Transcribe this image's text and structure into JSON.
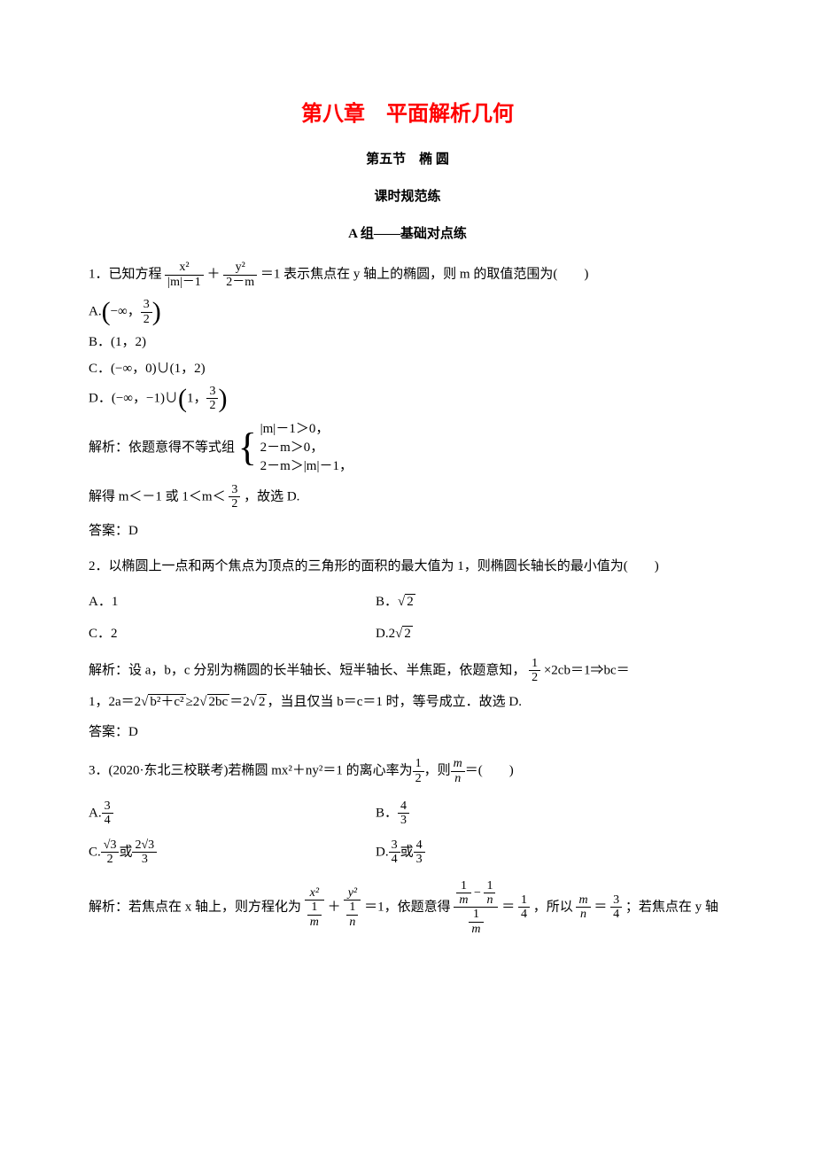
{
  "chapter": "第八章　平面解析几何",
  "section": "第五节　椭 圆",
  "subsection": "课时规范练",
  "group": "A 组——基础对点练",
  "q1": {
    "stem_pre": "1．已知方程",
    "stem_post": "＝1 表示焦点在 y 轴上的椭圆，则 m 的取值范围为(　　)",
    "frac1_num": "x²",
    "frac1_den": "|m|－1",
    "frac2_num": "y²",
    "frac2_den": "2－m",
    "plus": "＋",
    "A": "A.",
    "A_pre": "−∞，",
    "A_frac_num": "3",
    "A_frac_den": "2",
    "B": "B．(1，2)",
    "C": "C．(−∞，0)∪(1，2)",
    "D_pre": "D．(−∞，−1)∪",
    "D_in_pre": "1，",
    "D_frac_num": "3",
    "D_frac_den": "2",
    "sol_pre": "解析：依题意得不等式组",
    "sol_line1": "|m|－1＞0，",
    "sol_line2": "2－m＞0，",
    "sol_line3": "2－m＞|m|－1，",
    "sol2_pre": "解得 m＜－1 或 1＜m＜",
    "sol2_frac_num": "3",
    "sol2_frac_den": "2",
    "sol2_post": "，故选 D.",
    "ans": "答案：D"
  },
  "q2": {
    "stem": "2．以椭圆上一点和两个焦点为顶点的三角形的面积的最大值为 1，则椭圆长轴长的最小值为(　　)",
    "A": "A．1",
    "B_pre": "B．",
    "B_rad": "2",
    "C": "C．2",
    "D_pre": "D.2",
    "D_rad": "2",
    "sol_pre": "解析：设 a，b，c 分别为椭圆的长半轴长、短半轴长、半焦距，依题意知，",
    "sol_frac_num": "1",
    "sol_frac_den": "2",
    "sol_mid": "×2cb＝1⇒bc＝",
    "sol2_pre": "1，2a＝2",
    "sol2_rad1": "b²＋c²",
    "sol2_ge": "≥2",
    "sol2_rad2": "2bc",
    "sol2_eq": "＝2",
    "sol2_rad3": "2",
    "sol2_post": "，当且仅当 b＝c＝1 时，等号成立．故选 D.",
    "ans": "答案：D"
  },
  "q3": {
    "stem_pre": "3．(2020·东北三校联考)若椭圆 mx²＋ny²＝1 的离心率为",
    "stem_frac1_num": "1",
    "stem_frac1_den": "2",
    "stem_mid": "，则",
    "stem_frac2_num": "m",
    "stem_frac2_den": "n",
    "stem_post": "＝(　　)",
    "A_pre": "A.",
    "A_num": "3",
    "A_den": "4",
    "B_pre": "B．",
    "B_num": "4",
    "B_den": "3",
    "C_pre": "C.",
    "C_num1": "√3",
    "C_den1": "2",
    "C_or": "或",
    "C_num2": "2√3",
    "C_den2": "3",
    "D_pre": "D.",
    "D_num1": "3",
    "D_den1": "4",
    "D_or": "或",
    "D_num2": "4",
    "D_den2": "3",
    "sol_pre": "解析：若焦点在 x 轴上，则方程化为",
    "sol_f1top": "x²",
    "sol_f1botnum": "1",
    "sol_f1botden": "m",
    "sol_plus": "＋",
    "sol_f2top": "y²",
    "sol_f2botnum": "1",
    "sol_f2botden": "n",
    "sol_eq1": "＝1，依题意得",
    "sol_bignum": "1/m − 1/n",
    "sol_bigden": "1/m",
    "sol_eq": "＝",
    "sol_q_num": "1",
    "sol_q_den": "4",
    "sol_so": "，所以",
    "sol_mn_num": "m",
    "sol_mn_den": "n",
    "sol_eq2": "＝",
    "sol_r_num": "3",
    "sol_r_den": "4",
    "sol_post": "；若焦点在 y 轴"
  }
}
